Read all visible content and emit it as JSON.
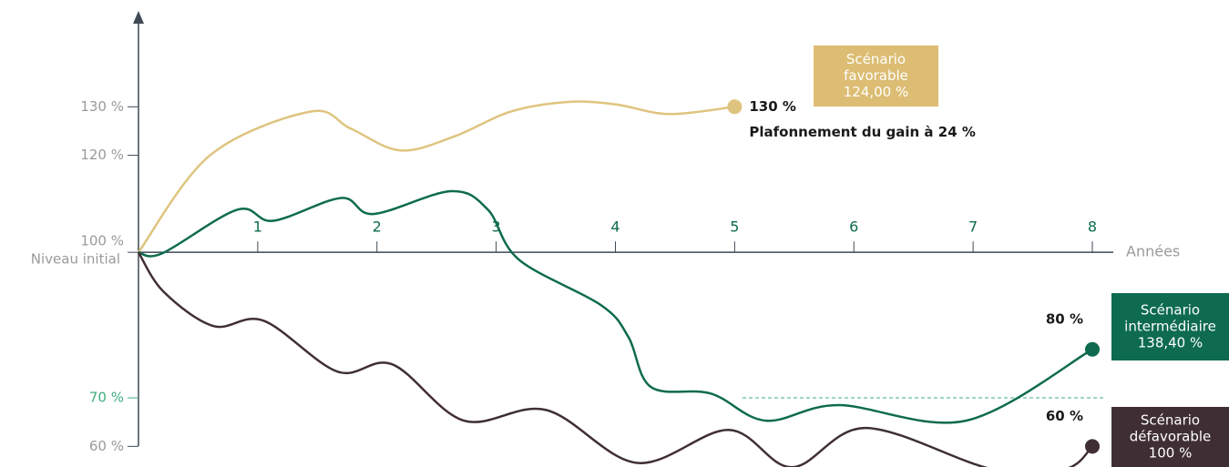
{
  "chart_data": {
    "type": "line",
    "x_label": "Années",
    "baseline_label": "Niveau initial",
    "cap_note": "Plafonnement du gain à 24 %",
    "xlim": [
      0,
      8
    ],
    "xticks": [
      1,
      2,
      3,
      4,
      5,
      6,
      7,
      8
    ],
    "ylim": [
      55,
      140
    ],
    "yticks": [
      {
        "value": 60,
        "label": "60 %"
      },
      {
        "value": 70,
        "label": "70 %"
      },
      {
        "value": 100,
        "label": "100 %"
      },
      {
        "value": 120,
        "label": "120 %"
      },
      {
        "value": 130,
        "label": "130 %"
      }
    ],
    "highlight_tick": 70,
    "series": [
      {
        "name": "Scénario favorable",
        "color": "#dfc47f",
        "box_color": "#dcbd73",
        "box": [
          "Scénario",
          "favorable",
          "124,00 %"
        ],
        "end_label": "130 %",
        "x": [
          0,
          0.6,
          1.44,
          1.78,
          2.2,
          2.66,
          3.12,
          3.6,
          4.0,
          4.45,
          5
        ],
        "values": [
          100,
          120,
          129,
          125.5,
          121,
          124,
          129,
          131,
          130.5,
          128.5,
          130
        ]
      },
      {
        "name": "Scénario intermédiaire",
        "color": "#0e6b4f",
        "box_color": "#0e6b4f",
        "box": [
          "Scénario",
          "intermédiaire",
          "138,40 %"
        ],
        "end_label": "80 %",
        "x": [
          0,
          0.2,
          0.83,
          1.13,
          1.7,
          1.97,
          2.62,
          2.93,
          3.19,
          3.88,
          4.11,
          4.3,
          4.8,
          5.26,
          5.87,
          6.94,
          8
        ],
        "values": [
          100,
          99.8,
          108.8,
          106.5,
          111.2,
          107.9,
          112.6,
          108.8,
          98.5,
          89.1,
          82.5,
          72.2,
          70.9,
          65.3,
          68.5,
          65.3,
          80
        ]
      },
      {
        "name": "Scénario défavorable",
        "color": "#3f2f35",
        "box_color": "#3f2f35",
        "box": [
          "Scénario",
          "défavorable",
          "100 %"
        ],
        "end_label": "60 %",
        "x": [
          0,
          0.21,
          0.63,
          1.05,
          1.67,
          2.13,
          2.73,
          3.42,
          4.18,
          4.95,
          5.48,
          6.1,
          7.16,
          7.77,
          8
        ],
        "values": [
          100,
          91.9,
          84.8,
          85.9,
          75.4,
          76.9,
          65.3,
          67.5,
          56.6,
          63.4,
          55.7,
          63.8,
          55.3,
          55.3,
          60
        ]
      }
    ]
  }
}
